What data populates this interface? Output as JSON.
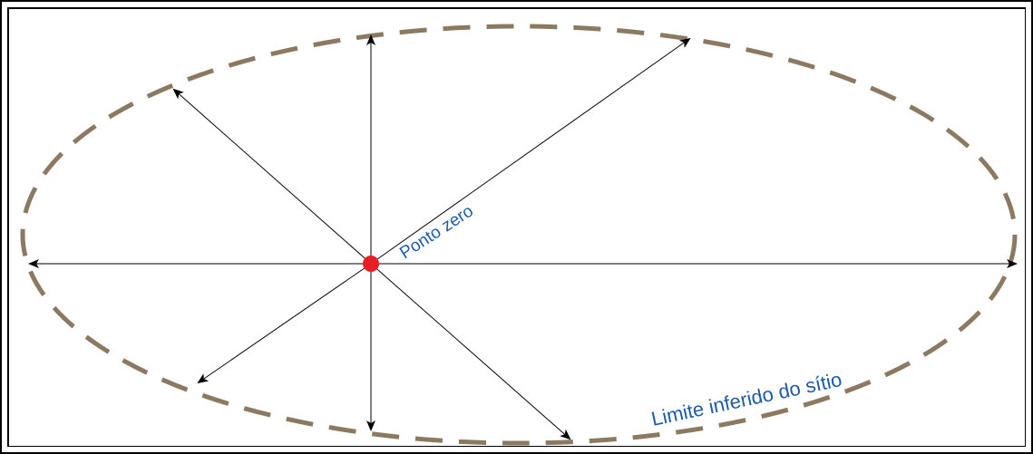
{
  "labels": {
    "origin": "Ponto zero",
    "boundary": "Limite inferido do sítio"
  },
  "colors": {
    "boundary": "#8b7a61",
    "origin_dot": "#e81e25",
    "arrow": "#000000",
    "label_text": "#1f5aa6"
  }
}
